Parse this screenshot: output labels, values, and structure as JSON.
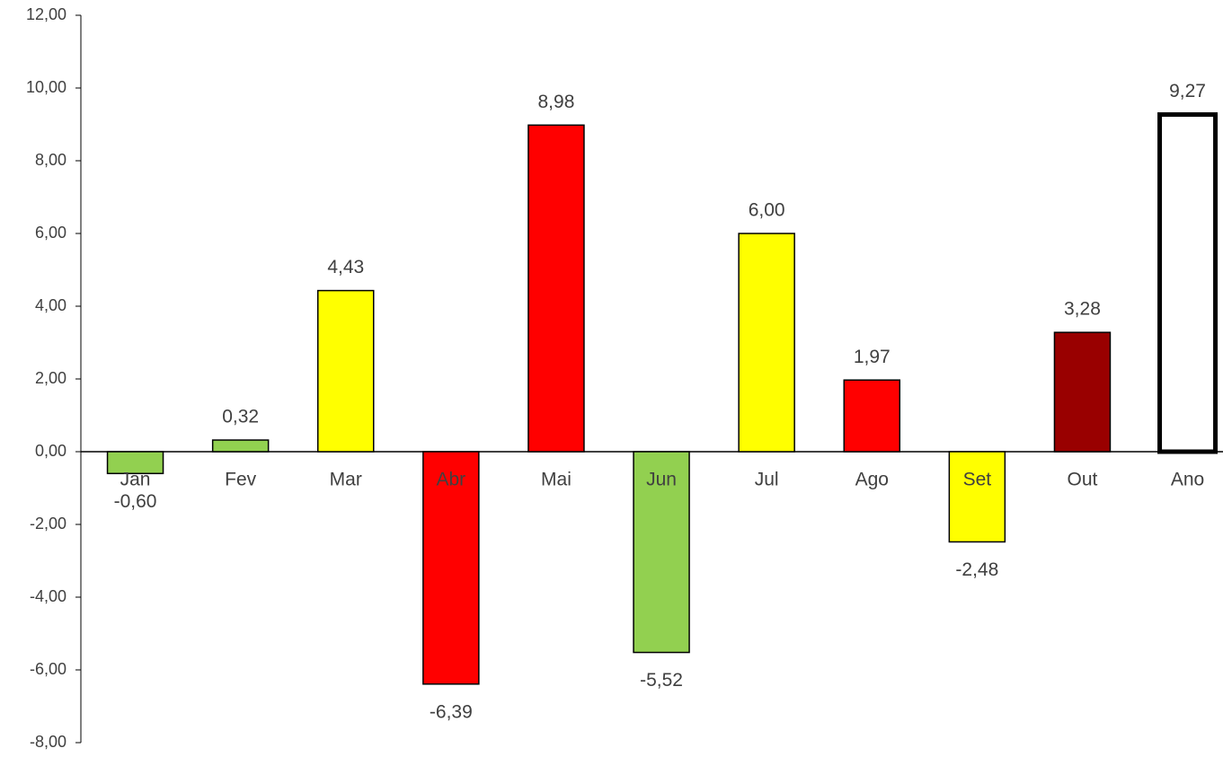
{
  "chart_data": {
    "type": "bar",
    "categories": [
      "Jan",
      "Fev",
      "Mar",
      "Abr",
      "Mai",
      "Jun",
      "Jul",
      "Ago",
      "Set",
      "Out",
      "Ano"
    ],
    "values": [
      -0.6,
      0.32,
      4.43,
      -6.39,
      8.98,
      -5.52,
      6.0,
      1.97,
      -2.48,
      3.28,
      9.27
    ],
    "value_labels": [
      "-0,60",
      "0,32",
      "4,43",
      "-6,39",
      "8,98",
      "-5,52",
      "6,00",
      "1,97",
      "-2,48",
      "3,28",
      "9,27"
    ],
    "colors": [
      "#92d050",
      "#92d050",
      "#ffff00",
      "#ff0000",
      "#ff0000",
      "#92d050",
      "#ffff00",
      "#ff0000",
      "#ffff00",
      "#990000",
      "#ffffff"
    ],
    "ylim": [
      -8,
      12
    ],
    "yticks": [
      {
        "value": -8,
        "label": "-8,00"
      },
      {
        "value": -6,
        "label": "-6,00"
      },
      {
        "value": -4,
        "label": "-4,00"
      },
      {
        "value": -2,
        "label": "-2,00"
      },
      {
        "value": 0,
        "label": "0,00"
      },
      {
        "value": 2,
        "label": "2,00"
      },
      {
        "value": 4,
        "label": "4,00"
      },
      {
        "value": 6,
        "label": "6,00"
      },
      {
        "value": 8,
        "label": "8,00"
      },
      {
        "value": 10,
        "label": "10,00"
      },
      {
        "value": 12,
        "label": "12,00"
      }
    ],
    "grid": false
  }
}
